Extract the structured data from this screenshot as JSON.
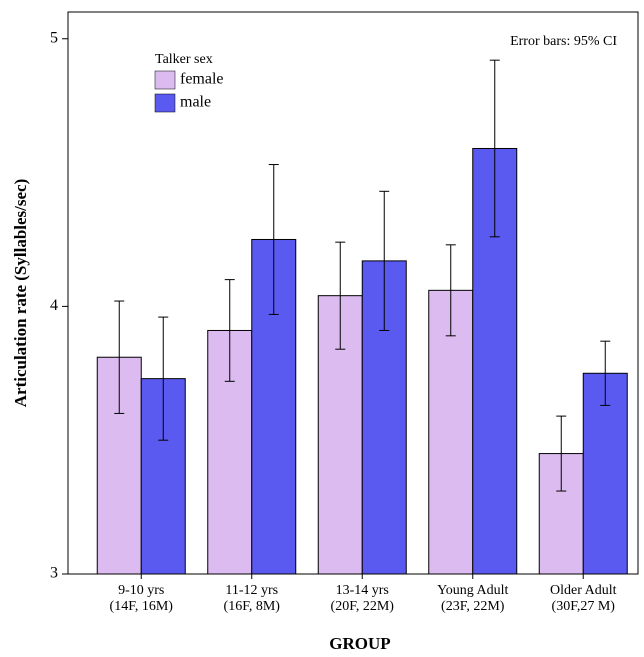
{
  "chart_data": {
    "type": "bar",
    "y_label": "Articulation rate (Syllables/sec)",
    "x_label": "GROUP",
    "annotation": "Error bars: 95% CI",
    "legend_title": "Talker sex",
    "categories": [
      "9-10 yrs",
      "11-12 yrs",
      "13-14 yrs",
      "Young Adult",
      "Older Adult"
    ],
    "category_notes": [
      "(14F, 16M)",
      "(16F, 8M)",
      "(20F, 22M)",
      "(23F, 22M)",
      "(30F,27 M)"
    ],
    "series": [
      {
        "name": "female",
        "color": "#dcbcf0",
        "values": [
          3.81,
          3.91,
          4.04,
          4.06,
          3.45
        ],
        "errors": [
          0.21,
          0.19,
          0.2,
          0.17,
          0.14
        ]
      },
      {
        "name": "male",
        "color": "#5a5af0",
        "values": [
          3.73,
          4.25,
          4.17,
          4.59,
          3.75
        ],
        "errors": [
          0.23,
          0.28,
          0.26,
          0.33,
          0.12
        ]
      }
    ],
    "ylim": [
      3,
      5.1
    ],
    "yticks": [
      3,
      4,
      5
    ]
  }
}
